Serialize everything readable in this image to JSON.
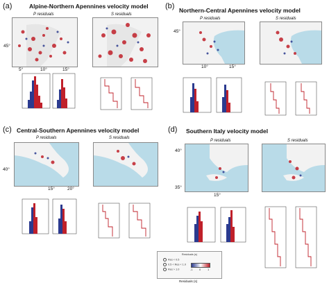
{
  "panels": {
    "a": {
      "label": "(a)",
      "title": "Alpine-Northern Apennines velocity model",
      "sub_p": "P residuals",
      "sub_s": "S residuals",
      "lat": "45°",
      "lon": [
        "5°",
        "10°",
        "15°"
      ]
    },
    "b": {
      "label": "(b)",
      "title": "Northern-Central Apennines velocity model",
      "sub_p": "P residuals",
      "sub_s": "S residuals",
      "lat": "45°",
      "lon": [
        "10°",
        "15°"
      ]
    },
    "c": {
      "label": "(c)",
      "title": "Central-Southern Apennines velocity model",
      "sub_p": "P residuals",
      "sub_s": "S residuals",
      "lat": "40°",
      "lon": [
        "15°",
        "20°"
      ]
    },
    "d": {
      "label": "(d)",
      "title": "Southern Italy velocity model",
      "sub_p": "P residuals",
      "sub_s": "S residuals",
      "lat": [
        "40°",
        "35°"
      ],
      "lon": "15°"
    }
  },
  "legend": {
    "title": "Residuals (s)",
    "entries": [
      "Res < 0.5",
      "0.5 < Res < 1.0",
      "Res > 1.0"
    ],
    "scale": [
      "-1",
      "0",
      "1"
    ],
    "bottom_label": "Residuals (s)"
  },
  "colors": {
    "positive": "#c0202a",
    "negative": "#2b3a8f",
    "sea": "#b9dbe8",
    "land": "#f2f2f2"
  }
}
